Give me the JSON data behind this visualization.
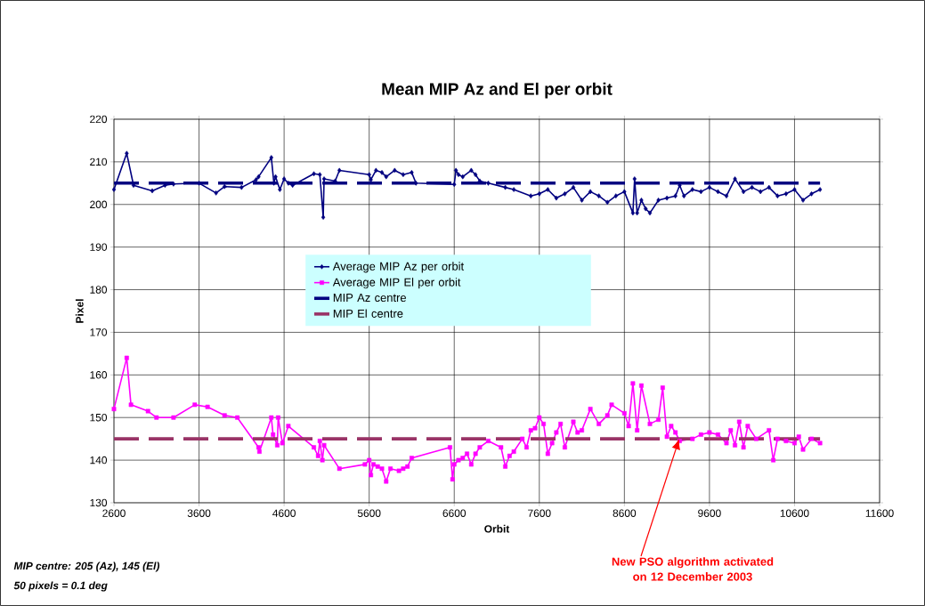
{
  "chart_data": {
    "type": "line",
    "title": "Mean MIP Az and El per orbit",
    "xlabel": "Orbit",
    "ylabel": "Pixel",
    "xlim": [
      2600,
      11600
    ],
    "xticks": [
      2600,
      3600,
      4600,
      5600,
      6600,
      7600,
      8600,
      9600,
      10600,
      11600
    ],
    "ylim": [
      130,
      220
    ],
    "yticks": [
      130,
      140,
      150,
      160,
      170,
      180,
      190,
      200,
      210,
      220
    ],
    "grid": true,
    "legend": "center",
    "series": [
      {
        "name": "Average MIP Az per orbit",
        "color": "#000080",
        "marker": "diamond",
        "line_style": "solid",
        "x": [
          2600,
          2750,
          2830,
          3050,
          3200,
          3300,
          3600,
          3800,
          3900,
          4100,
          4270,
          4300,
          4450,
          4480,
          4500,
          4550,
          4600,
          4650,
          4700,
          4950,
          5020,
          5060,
          5070,
          5200,
          5250,
          5600,
          5620,
          5680,
          5750,
          5800,
          5900,
          6000,
          6100,
          6150,
          6600,
          6620,
          6650,
          6700,
          6800,
          6850,
          6900,
          7000,
          7200,
          7300,
          7500,
          7600,
          7700,
          7800,
          7900,
          8000,
          8100,
          8200,
          8300,
          8400,
          8500,
          8600,
          8700,
          8720,
          8750,
          8800,
          8850,
          8900,
          9000,
          9100,
          9200,
          9250,
          9300,
          9400,
          9500,
          9600,
          9700,
          9800,
          9900,
          10000,
          10100,
          10200,
          10300,
          10400,
          10500,
          10600,
          10700,
          10800,
          10900
        ],
        "values": [
          203.5,
          212,
          204.5,
          203.2,
          204.5,
          204.8,
          205,
          202.7,
          204.2,
          204,
          205.8,
          206.5,
          211,
          205,
          206.5,
          203.5,
          206,
          205,
          204.5,
          207.2,
          207,
          197,
          206,
          205.5,
          208,
          207,
          205.8,
          208,
          207.5,
          206.5,
          208,
          207,
          207.5,
          205,
          204.7,
          208,
          207,
          206.5,
          208,
          207,
          205.5,
          205,
          204,
          203.5,
          202,
          202.5,
          203.5,
          201.5,
          202.5,
          204,
          201,
          203,
          202,
          200.5,
          202,
          203,
          198,
          206,
          198,
          201,
          199,
          198,
          201,
          201.5,
          202,
          204.5,
          202,
          203.5,
          203,
          204,
          203,
          202,
          206,
          203,
          204,
          203,
          204,
          202,
          202.5,
          203.5,
          201,
          202.5,
          203.5
        ]
      },
      {
        "name": "Average MIP El per orbit",
        "color": "#ff00ff",
        "marker": "square",
        "line_style": "solid",
        "x": [
          2600,
          2750,
          2800,
          3000,
          3100,
          3300,
          3550,
          3700,
          3900,
          4050,
          4300,
          4310,
          4450,
          4470,
          4520,
          4530,
          4580,
          4650,
          4950,
          5000,
          5020,
          5050,
          5070,
          5250,
          5550,
          5600,
          5620,
          5650,
          5700,
          5750,
          5800,
          5850,
          5950,
          6000,
          6050,
          6100,
          6550,
          6580,
          6600,
          6650,
          6700,
          6750,
          6800,
          6850,
          6900,
          7000,
          7150,
          7200,
          7250,
          7300,
          7400,
          7450,
          7500,
          7550,
          7600,
          7650,
          7700,
          7750,
          7800,
          7850,
          7900,
          8000,
          8050,
          8100,
          8200,
          8300,
          8400,
          8450,
          8600,
          8650,
          8700,
          8750,
          8800,
          8900,
          9000,
          9050,
          9100,
          9150,
          9200,
          9250,
          9400,
          9500,
          9600,
          9700,
          9800,
          9850,
          9900,
          9950,
          10000,
          10050,
          10150,
          10300,
          10350,
          10400,
          10500,
          10600,
          10650,
          10700,
          10800,
          10900
        ],
        "values": [
          152,
          164,
          153,
          151.5,
          150,
          150,
          153,
          152.5,
          150.5,
          150,
          143,
          142,
          150,
          146,
          143.5,
          150,
          144,
          148,
          143,
          141,
          144.5,
          140,
          143.5,
          138,
          139,
          140,
          136.5,
          139,
          138.5,
          138,
          135,
          138,
          137.5,
          138,
          138.5,
          140.5,
          143,
          135.5,
          139,
          140,
          140.5,
          141.5,
          139,
          141.5,
          143,
          144.5,
          143,
          138.5,
          141,
          142,
          145,
          143,
          147,
          147.5,
          150,
          148.5,
          141.5,
          144,
          146.5,
          148.5,
          143,
          149,
          146.5,
          147,
          152,
          148.5,
          150.5,
          153,
          151,
          148,
          158,
          147,
          157.5,
          148.5,
          149.5,
          157,
          145.5,
          148,
          146.5,
          144.5,
          145,
          146,
          146.5,
          146,
          144,
          147,
          143.5,
          149,
          143,
          148,
          145,
          147,
          140,
          145,
          144.5,
          144,
          145.5,
          142.5,
          145,
          144
        ]
      },
      {
        "name": "MIP Az centre",
        "color": "#000080",
        "marker": "none",
        "line_style": "dashed",
        "x": [
          2600,
          10900
        ],
        "values": [
          205,
          205
        ]
      },
      {
        "name": "MIP El centre",
        "color": "#993366",
        "marker": "none",
        "line_style": "dashed",
        "x": [
          2600,
          10900
        ],
        "values": [
          145,
          145
        ]
      }
    ],
    "annotations": [
      "MIP centre: 205 (Az), 145 (El)",
      "50 pixels = 0.1 deg",
      "New PSO algorithm activated on 12 December 2003"
    ]
  }
}
